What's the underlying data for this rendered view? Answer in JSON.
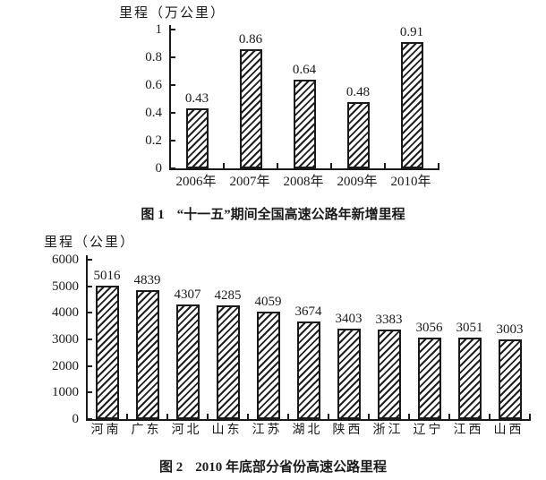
{
  "page": {
    "background": "#ffffff",
    "ink_color": "#1a1a1a"
  },
  "chart_data": [
    {
      "type": "bar",
      "figure_label": "图 1",
      "title": "“十一五”期间全国高速公路年新增里程",
      "ylabel": "里程（万公里）",
      "xlabel": "",
      "categories": [
        "2006年",
        "2007年",
        "2008年",
        "2009年",
        "2010年"
      ],
      "values": [
        0.43,
        0.86,
        0.64,
        0.48,
        0.91
      ],
      "data_labels": [
        "0.43",
        "0.86",
        "0.64",
        "0.48",
        "0.91"
      ],
      "ylim": [
        0,
        1
      ],
      "y_ticks": [
        1,
        0.8,
        0.6,
        0.4,
        0.2,
        0
      ],
      "grid": false,
      "legend": "none",
      "bar_fill": "diagonal-hatch"
    },
    {
      "type": "bar",
      "figure_label": "图 2",
      "title": "2010 年底部分省份高速公路里程",
      "ylabel": "里程（公里）",
      "xlabel": "",
      "categories": [
        "河南",
        "广东",
        "河北",
        "山东",
        "江苏",
        "湖北",
        "陕西",
        "浙江",
        "辽宁",
        "江西",
        "山西"
      ],
      "values": [
        5016,
        4839,
        4307,
        4285,
        4059,
        3674,
        3403,
        3383,
        3056,
        3051,
        3003
      ],
      "data_labels": [
        "5016",
        "4839",
        "4307",
        "4285",
        "4059",
        "3674",
        "3403",
        "3383",
        "3056",
        "3051",
        "3003"
      ],
      "ylim": [
        0,
        6000
      ],
      "y_ticks": [
        6000,
        5000,
        4000,
        3000,
        2000,
        1000,
        0
      ],
      "grid": false,
      "legend": "none",
      "bar_fill": "diagonal-hatch"
    }
  ]
}
